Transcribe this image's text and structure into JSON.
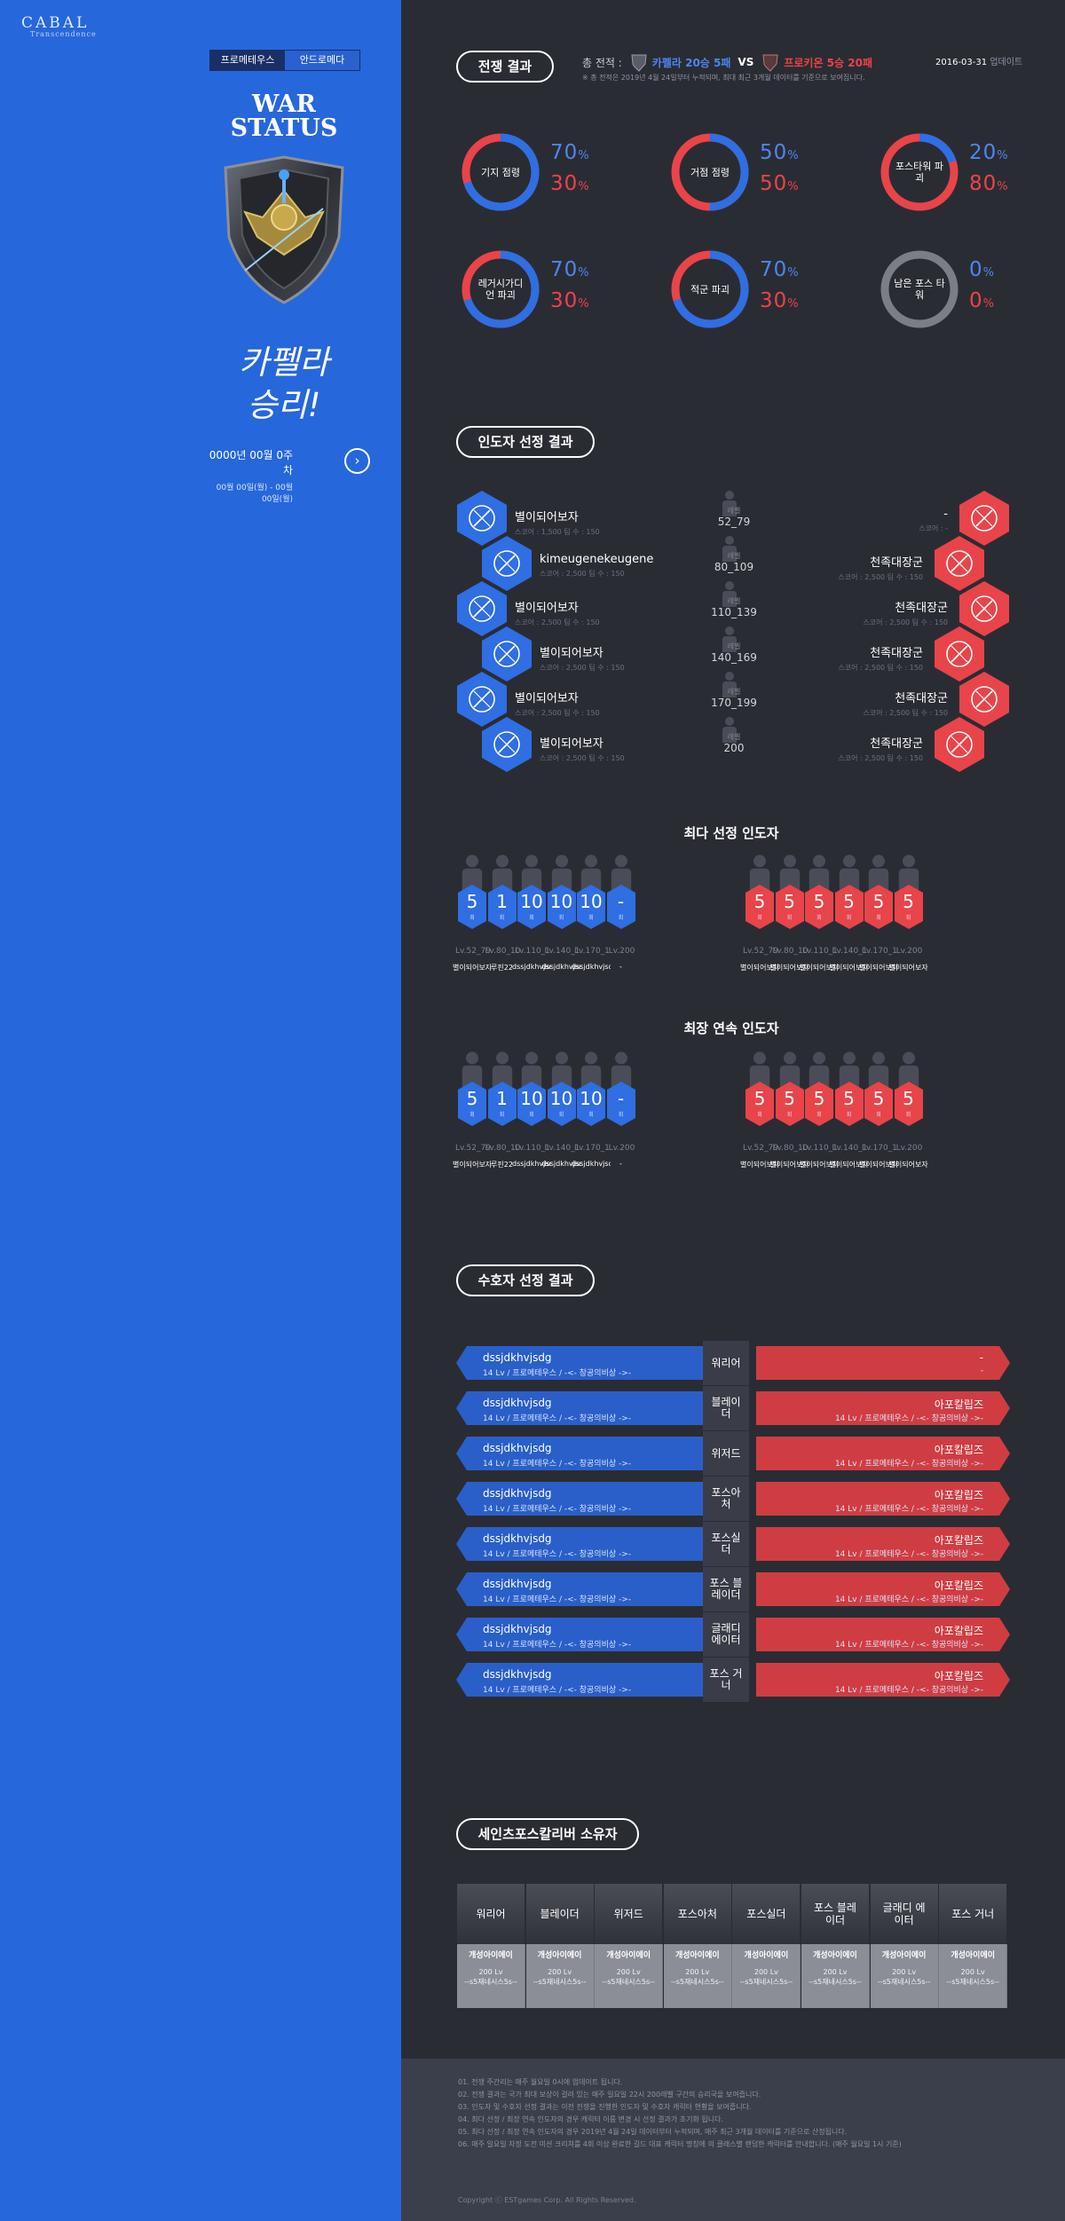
{
  "logo": {
    "name": "CABAL",
    "sub": "Transcendence"
  },
  "servers": {
    "active": "프로메테우스",
    "inactive": "안드로메다"
  },
  "side": {
    "title1": "WAR",
    "title2": "STATUS",
    "victory1": "카펠라",
    "victory2": "승리!",
    "week": "0000년 00월 0주차",
    "range": "00월 00일(월) - 00월 00일(월)"
  },
  "war": {
    "section": "전쟁 결과",
    "total": "총 전적 :",
    "capella": "카펠라 20승 5패",
    "vs": "VS",
    "procyon": "프로키온 5승 20패",
    "note": "※ 총 전적은 2019년 4월 24일부터 누적되며, 최대 최근 3개월 데이터를 기준으로 보여집니다.",
    "date": "2016-03-31",
    "update": "업데이트",
    "rings": [
      {
        "label": "기지 점령",
        "blue": "70",
        "red": "30",
        "blue_pct": 0.7
      },
      {
        "label": "거점 점령",
        "blue": "50",
        "red": "50",
        "blue_pct": 0.5
      },
      {
        "label": "포스타워 파괴",
        "blue": "20",
        "red": "80",
        "blue_pct": 0.2
      },
      {
        "label": "레거시가디언 파괴",
        "blue": "70",
        "red": "30",
        "blue_pct": 0.7
      },
      {
        "label": "적군 파괴",
        "blue": "70",
        "red": "30",
        "blue_pct": 0.7
      },
      {
        "label": "남은 포스 타워",
        "blue": "0",
        "red": "0",
        "blue_pct": 0
      }
    ],
    "unit": "%"
  },
  "leaders": {
    "section": "인도자 선정 결과",
    "lv_label": "레벨",
    "rows": [
      {
        "lv": "52_79",
        "left": "별이되어보자",
        "left_stat": "스코어 : 1,500   팀 수 : 150",
        "right": "-",
        "right_stat": "스코어 : -"
      },
      {
        "lv": "80_109",
        "left": "kimeugenekeugene",
        "left_stat": "스코어 : 2,500   팀 수 : 150",
        "right": "천족대장군",
        "right_stat": "스코어 : 2,500   팀 수 : 150"
      },
      {
        "lv": "110_139",
        "left": "별이되어보자",
        "left_stat": "스코어 : 2,500   팀 수 : 150",
        "right": "천족대장군",
        "right_stat": "스코어 : 2,500   팀 수 : 150"
      },
      {
        "lv": "140_169",
        "left": "별이되어보자",
        "left_stat": "스코어 : 2,500   팀 수 : 150",
        "right": "천족대장군",
        "right_stat": "스코어 : 2,500   팀 수 : 150"
      },
      {
        "lv": "170_199",
        "left": "별이되어보자",
        "left_stat": "스코어 : 2,500   팀 수 : 150",
        "right": "천족대장군",
        "right_stat": "스코어 : 2,500   팀 수 : 150"
      },
      {
        "lv": "200",
        "left": "별이되어보자",
        "left_stat": "스코어 : 2,500   팀 수 : 150",
        "right": "천족대장군",
        "right_stat": "스코어 : 2,500   팀 수 : 150"
      }
    ]
  },
  "most": {
    "title": "최다 선정 인도자",
    "unit": "회"
  },
  "streak": {
    "title": "최장 연속 인도자",
    "unit": "회"
  },
  "cards": {
    "blue": [
      {
        "v": "5",
        "lv": "Lv.52_79",
        "nm": "별이되어보자"
      },
      {
        "v": "1",
        "lv": "Lv.80_109",
        "nm": "루핀22"
      },
      {
        "v": "10",
        "lv": "Lv.110_139",
        "nm": "dssjdkhvjsdg"
      },
      {
        "v": "10",
        "lv": "Lv.140_169",
        "nm": "dssjdkhvjsdg"
      },
      {
        "v": "10",
        "lv": "Lv.170_199",
        "nm": "dssjdkhvjsdg"
      },
      {
        "v": "-",
        "lv": "Lv.200",
        "nm": "-"
      }
    ],
    "red": [
      {
        "v": "5",
        "lv": "Lv.52_79",
        "nm": "별이되어보자"
      },
      {
        "v": "5",
        "lv": "Lv.80_109",
        "nm": "별이되어보자"
      },
      {
        "v": "5",
        "lv": "Lv.110_139",
        "nm": "별이되어보자"
      },
      {
        "v": "5",
        "lv": "Lv.140_169",
        "nm": "별이되어보자"
      },
      {
        "v": "5",
        "lv": "Lv.170_199",
        "nm": "별이되어보자"
      },
      {
        "v": "5",
        "lv": "Lv.200",
        "nm": "별이되어보자"
      }
    ]
  },
  "guardians": {
    "section": "수호자 선정 결과",
    "rows": [
      {
        "cls": "워리어",
        "left": "dssjdkhvjsdg",
        "left_sub": "14 Lv / 프로메테우스 / -<- 창공의비상 ->-",
        "right": "-",
        "right_sub": "-"
      },
      {
        "cls": "블레이더",
        "left": "dssjdkhvjsdg",
        "left_sub": "14 Lv / 프로메테우스 / -<- 창공의비상 ->-",
        "right": "아포칼립즈",
        "right_sub": "14 Lv / 프로메테우스 / -<- 창공의비상 ->-"
      },
      {
        "cls": "위저드",
        "left": "dssjdkhvjsdg",
        "left_sub": "14 Lv / 프로메테우스 / -<- 창공의비상 ->-",
        "right": "아포칼립즈",
        "right_sub": "14 Lv / 프로메테우스 / -<- 창공의비상 ->-"
      },
      {
        "cls": "포스아처",
        "left": "dssjdkhvjsdg",
        "left_sub": "14 Lv / 프로메테우스 / -<- 창공의비상 ->-",
        "right": "아포칼립즈",
        "right_sub": "14 Lv / 프로메테우스 / -<- 창공의비상 ->-"
      },
      {
        "cls": "포스실더",
        "left": "dssjdkhvjsdg",
        "left_sub": "14 Lv / 프로메테우스 / -<- 창공의비상 ->-",
        "right": "아포칼립즈",
        "right_sub": "14 Lv / 프로메테우스 / -<- 창공의비상 ->-"
      },
      {
        "cls": "포스 블레이더",
        "left": "dssjdkhvjsdg",
        "left_sub": "14 Lv / 프로메테우스 / -<- 창공의비상 ->-",
        "right": "아포칼립즈",
        "right_sub": "14 Lv / 프로메테우스 / -<- 창공의비상 ->-"
      },
      {
        "cls": "글래디 에이터",
        "left": "dssjdkhvjsdg",
        "left_sub": "14 Lv / 프로메테우스 / -<- 창공의비상 ->-",
        "right": "아포칼립즈",
        "right_sub": "14 Lv / 프로메테우스 / -<- 창공의비상 ->-"
      },
      {
        "cls": "포스 거너",
        "left": "dssjdkhvjsdg",
        "left_sub": "14 Lv / 프로메테우스 / -<- 창공의비상 ->-",
        "right": "아포칼립즈",
        "right_sub": "14 Lv / 프로메테우스 / -<- 창공의비상 ->-"
      }
    ]
  },
  "excalibur": {
    "section": "세인츠포스칼리버 소유자",
    "items": [
      {
        "cls": "워리어",
        "name": "개성아이에이",
        "lv": "200 Lv",
        "guild": "--s5재네시스5s--"
      },
      {
        "cls": "블레이더",
        "name": "개성아이에이",
        "lv": "200 Lv",
        "guild": "--s5재네시스5s--"
      },
      {
        "cls": "위저드",
        "name": "개성아이에이",
        "lv": "200 Lv",
        "guild": "--s5재네시스5s--"
      },
      {
        "cls": "포스아처",
        "name": "개성아이에이",
        "lv": "200 Lv",
        "guild": "--s5재네시스5s--"
      },
      {
        "cls": "포스실더",
        "name": "개성아이에이",
        "lv": "200 Lv",
        "guild": "--s5재네시스5s--"
      },
      {
        "cls": "포스 블레이더",
        "name": "개성아이에이",
        "lv": "200 Lv",
        "guild": "--s5재네시스5s--"
      },
      {
        "cls": "글래디 에이터",
        "name": "개성아이에이",
        "lv": "200 Lv",
        "guild": "--s5재네시스5s--"
      },
      {
        "cls": "포스 거너",
        "name": "개성아이에이",
        "lv": "200 Lv",
        "guild": "--s5재네시스5s--"
      }
    ]
  },
  "footer": {
    "notes": [
      "01. 전쟁 주간리는 매주 월요일 0시에 업데이트 됩니다.",
      "02. 전쟁 결과는 국가 최대 보상이 걸려 있는 매주 일요일 22시 200레벨 구간의 승리국을 보여줍니다.",
      "03. 인도자 및 수호자 선정 결과는 이전 전쟁을 진행한 인도자 및 수호자 캐릭터 현황을 보여줍니다.",
      "04. 최다 선정 / 최장 연속 인도자의 경우 캐릭터 이름 변경 시 선정 결과가 초기화 됩니다.",
      "05. 최다 선정 / 최장 연속 인도자의 경우 2019년 4월 24일 데이터부터 누적되며, 매주 최근 3개월 데이터를 기준으로 산정됩니다.",
      "06. 매주 일요일 자정 도전 미션 크리쳐를 4회 이상 완료한 길드 대표 캐릭터 명칭에 의 클래스별 랜덤한 캐릭터를 안내합니다. (매주 월요일 1시 기준)"
    ],
    "copy": "Copyright ⓒ ESTgames Corp. All Rights Reserved."
  },
  "colors": {
    "blue": "#2667dc",
    "red": "#e8444a",
    "dark": "#2a2c34"
  }
}
